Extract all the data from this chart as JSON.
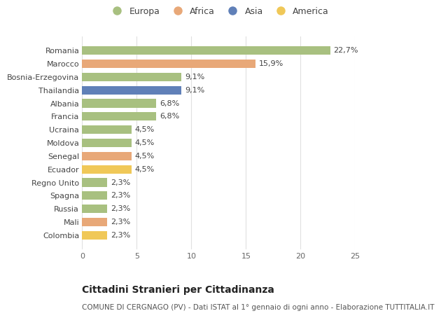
{
  "categories": [
    "Colombia",
    "Mali",
    "Russia",
    "Spagna",
    "Regno Unito",
    "Ecuador",
    "Senegal",
    "Moldova",
    "Ucraina",
    "Francia",
    "Albania",
    "Thailandia",
    "Bosnia-Erzegovina",
    "Marocco",
    "Romania"
  ],
  "values": [
    2.3,
    2.3,
    2.3,
    2.3,
    2.3,
    4.5,
    4.5,
    4.5,
    4.5,
    6.8,
    6.8,
    9.1,
    9.1,
    15.9,
    22.7
  ],
  "labels": [
    "2,3%",
    "2,3%",
    "2,3%",
    "2,3%",
    "2,3%",
    "4,5%",
    "4,5%",
    "4,5%",
    "4,5%",
    "6,8%",
    "6,8%",
    "9,1%",
    "9,1%",
    "15,9%",
    "22,7%"
  ],
  "continents": [
    "America",
    "Africa",
    "Europa",
    "Europa",
    "Europa",
    "America",
    "Africa",
    "Europa",
    "Europa",
    "Europa",
    "Europa",
    "Asia",
    "Europa",
    "Africa",
    "Europa"
  ],
  "continent_colors": {
    "Europa": "#a8c080",
    "Africa": "#e8a878",
    "Asia": "#6080b8",
    "America": "#f0c858"
  },
  "legend_order": [
    "Europa",
    "Africa",
    "Asia",
    "America"
  ],
  "title": "Cittadini Stranieri per Cittadinanza",
  "subtitle": "COMUNE DI CERGNAGO (PV) - Dati ISTAT al 1° gennaio di ogni anno - Elaborazione TUTTITALIA.IT",
  "xlim": [
    0,
    25
  ],
  "xticks": [
    0,
    5,
    10,
    15,
    20,
    25
  ],
  "background_color": "#ffffff",
  "grid_color": "#e0e0e0",
  "bar_height": 0.65,
  "label_fontsize": 8,
  "title_fontsize": 10,
  "subtitle_fontsize": 7.5,
  "tick_fontsize": 8,
  "legend_fontsize": 9
}
